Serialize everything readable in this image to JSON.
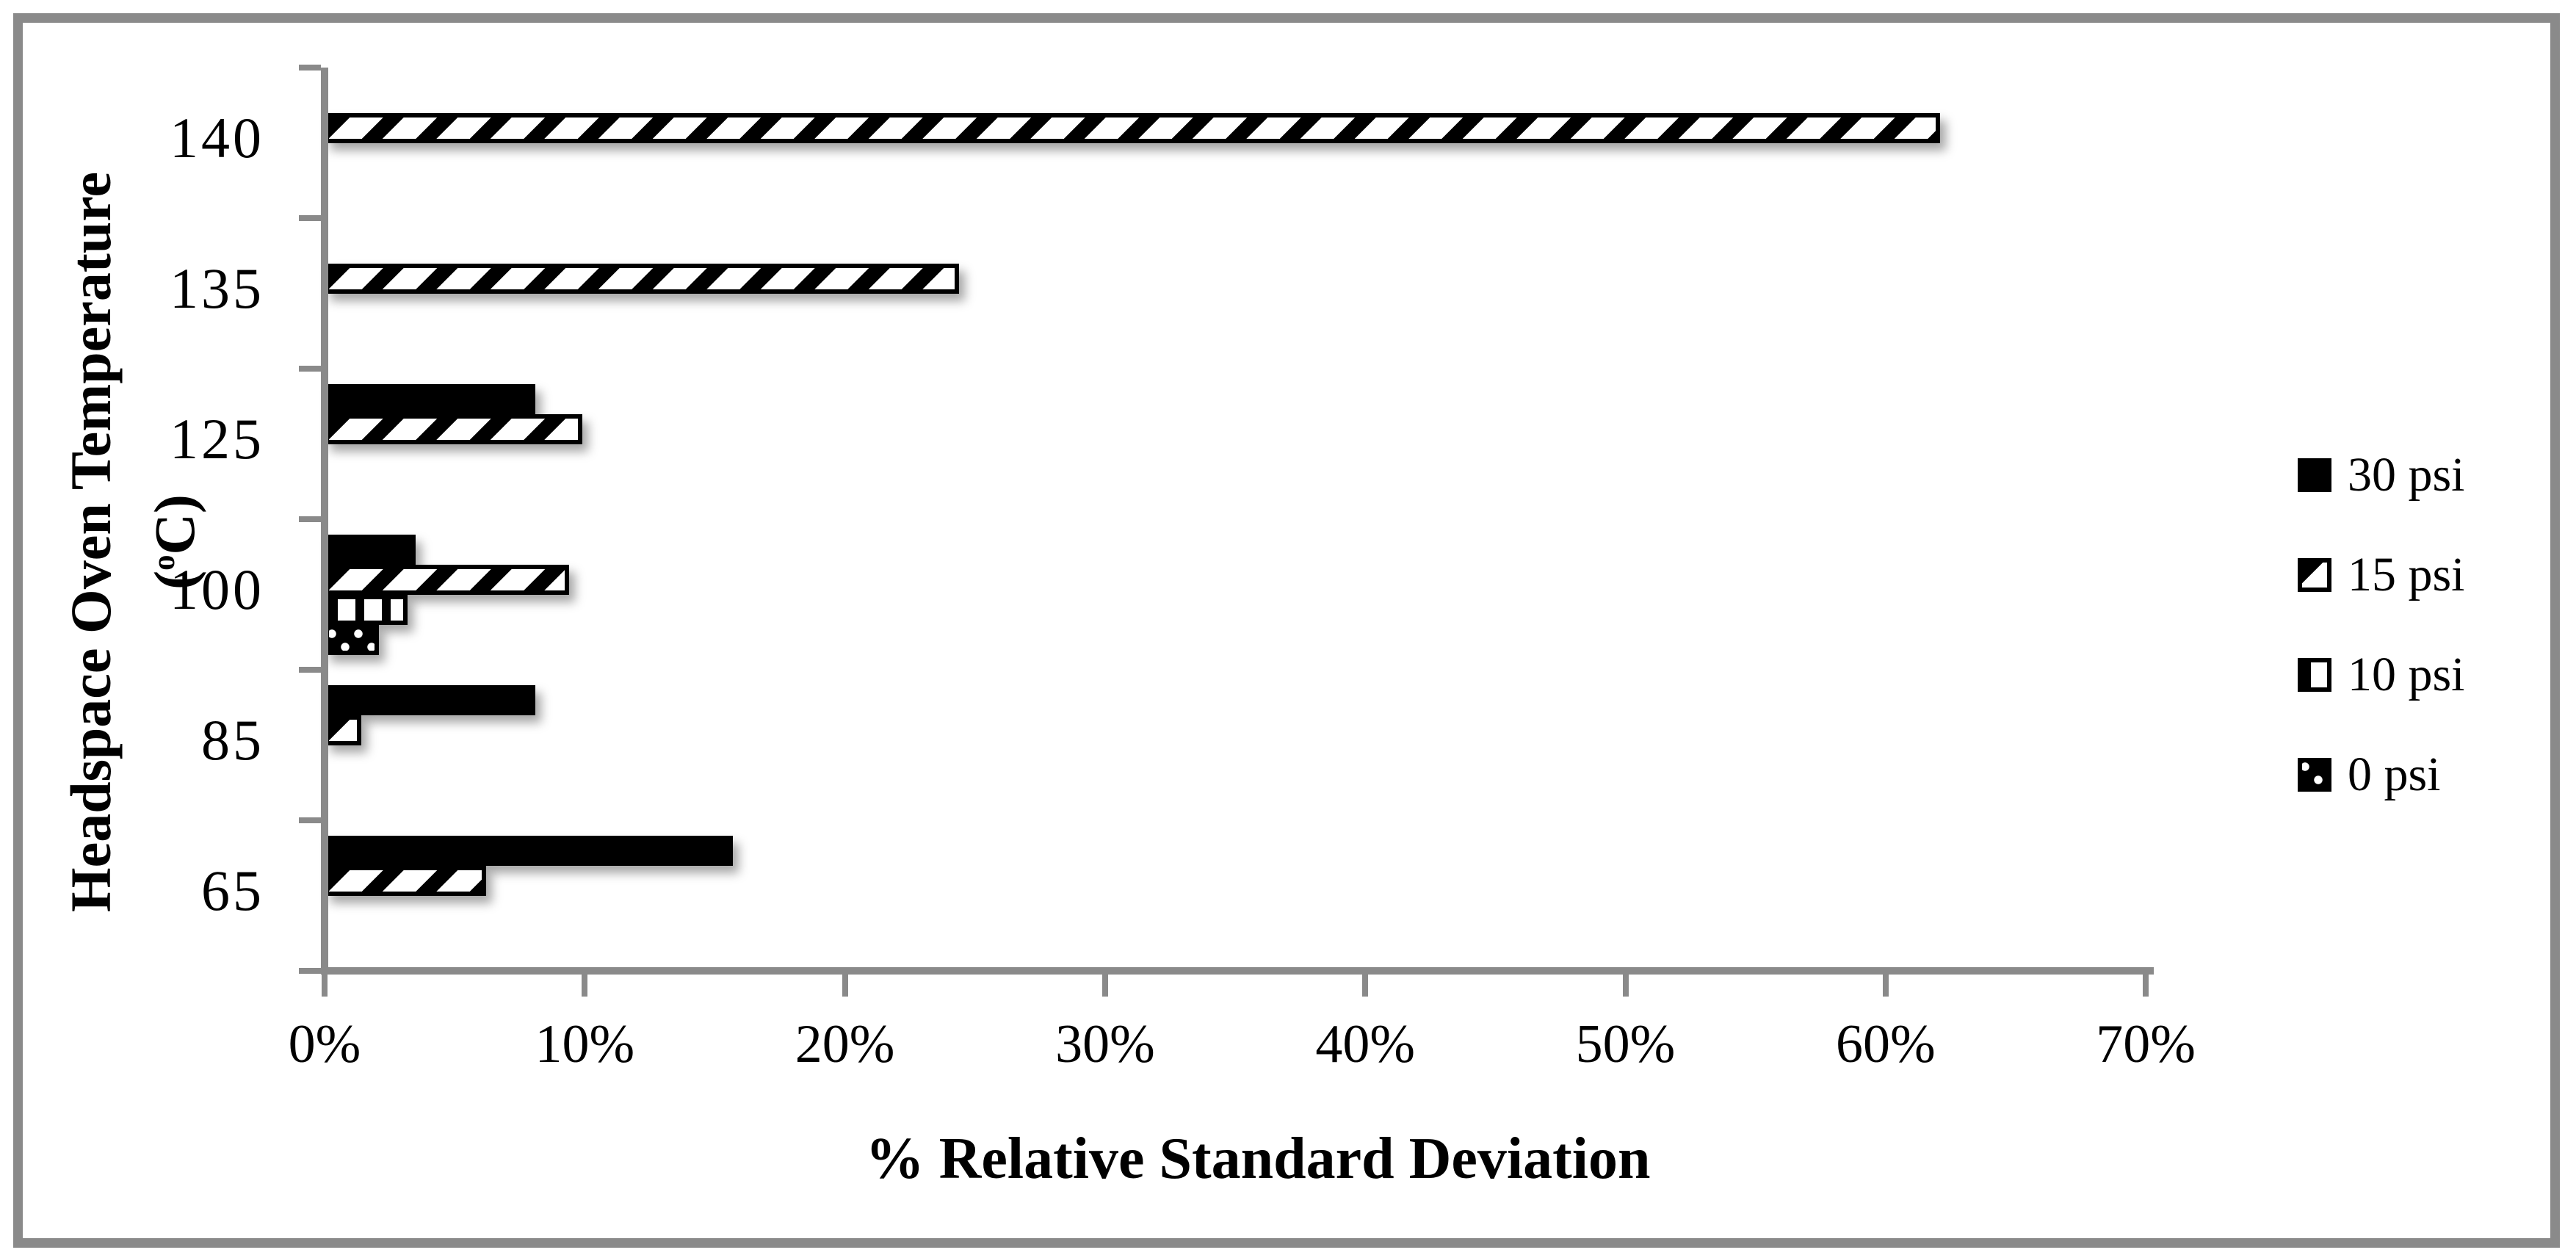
{
  "figure": {
    "background": "#ffffff",
    "frame_color": "#8a8a8a",
    "axis_color": "#8a8a8a",
    "bar_color": "#000000"
  },
  "chart_data": {
    "type": "bar",
    "orientation": "horizontal",
    "title": "",
    "xlabel": "% Relative Standard Deviation",
    "ylabel": {
      "line1": "Headspace Oven Temperature",
      "line2_open": "(",
      "line2_sup": "o",
      "line2_close": "C)"
    },
    "categories": [
      "140",
      "135",
      "125",
      "100",
      "85",
      "65"
    ],
    "series": [
      {
        "name": "30 psi",
        "pattern": "solid",
        "values": [
          0,
          0,
          8.1,
          3.5,
          8.1,
          15.7
        ]
      },
      {
        "name": "15 psi",
        "pattern": "diag",
        "values": [
          62.1,
          24.4,
          9.9,
          9.4,
          1.4,
          6.2
        ]
      },
      {
        "name": "10 psi",
        "pattern": "vert",
        "values": [
          0,
          0,
          0,
          3.2,
          0,
          0
        ]
      },
      {
        "name": "0 psi",
        "pattern": "dots",
        "values": [
          0,
          0,
          0,
          2.1,
          0,
          0
        ]
      }
    ],
    "x_ticks": [
      "0%",
      "10%",
      "20%",
      "30%",
      "40%",
      "50%",
      "60%",
      "70%"
    ],
    "xlim": [
      0,
      70
    ],
    "grid": false,
    "legend_position": "right"
  }
}
